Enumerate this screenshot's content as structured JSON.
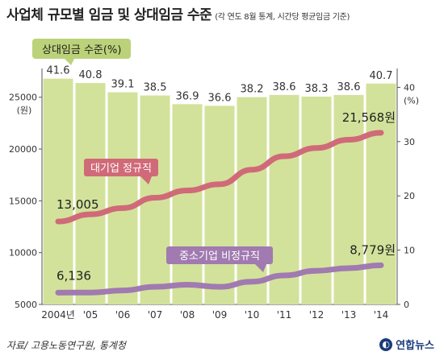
{
  "title": "사업체 규모별 임금 및 상대임금 수준",
  "subtitle": "(각 연도 8월 통계, 시간당 평균임금 기준)",
  "source": "자료/ 고용노동연구원, 통계청",
  "logo_text": "연합뉴스",
  "logo_icon": "yonhap-logo-icon",
  "chart_data": {
    "type": "bar",
    "categories": [
      "2004년",
      "'05",
      "'06",
      "'07",
      "'08",
      "'09",
      "'10",
      "'11",
      "'12",
      "'13",
      "'14"
    ],
    "left_axis": {
      "unit": "(원)",
      "ticks": [
        5000,
        10000,
        15000,
        20000,
        25000
      ],
      "range": [
        5000,
        27000
      ]
    },
    "right_axis": {
      "unit": "(%)",
      "ticks": [
        0,
        10,
        20,
        30,
        40
      ],
      "range": [
        0,
        42
      ]
    },
    "bars": {
      "name": "상대임금 수준(%)",
      "values": [
        41.6,
        40.8,
        39.1,
        38.5,
        36.9,
        36.6,
        38.2,
        38.6,
        38.3,
        38.6,
        40.7
      ],
      "labels": [
        "41.6",
        "40.8",
        "39.1",
        "38.5",
        "36.9",
        "36.6",
        "38.2",
        "38.6",
        "38.3",
        "38.6",
        "40.7"
      ],
      "color": "#d2e29a"
    },
    "series": [
      {
        "name": "대기업 정규직",
        "values": [
          13005,
          13700,
          14300,
          15300,
          16000,
          16600,
          18000,
          19300,
          20100,
          20900,
          21568
        ],
        "start_label": "13,005",
        "end_label": "21,568원",
        "color": "#d06a78"
      },
      {
        "name": "중소기업 비정규직",
        "values": [
          6136,
          6150,
          6350,
          6700,
          6900,
          6700,
          7200,
          7800,
          8250,
          8500,
          8779
        ],
        "start_label": "6,136",
        "end_label": "8,779원",
        "color": "#a07ab0"
      }
    ],
    "legend": "inline"
  }
}
